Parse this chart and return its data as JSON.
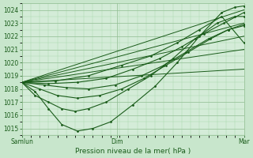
{
  "bg_color": "#c8e6cc",
  "plot_bg_color": "#d4ecd8",
  "grid_major_color": "#8fbc8f",
  "grid_minor_color": "#a8d4a8",
  "line_color": "#1a5c1a",
  "ylim": [
    1014.5,
    1024.5
  ],
  "yticks": [
    1015,
    1016,
    1017,
    1018,
    1019,
    1020,
    1021,
    1022,
    1023,
    1024
  ],
  "xlabel": "Pression niveau de la mer( hPa )",
  "xtick_labels": [
    "Samlun",
    "Dim",
    "Mar"
  ],
  "xtick_positions": [
    0.0,
    0.43,
    1.0
  ],
  "figsize": [
    3.2,
    2.0
  ],
  "dpi": 100,
  "straight_lines": [
    {
      "x": [
        0.0,
        1.0
      ],
      "y": [
        1018.5,
        1019.5
      ]
    },
    {
      "x": [
        0.0,
        1.0
      ],
      "y": [
        1018.5,
        1021.0
      ]
    },
    {
      "x": [
        0.0,
        1.0
      ],
      "y": [
        1018.5,
        1022.0
      ]
    },
    {
      "x": [
        0.0,
        1.0
      ],
      "y": [
        1018.5,
        1023.0
      ]
    },
    {
      "x": [
        0.0,
        1.0
      ],
      "y": [
        1018.5,
        1024.0
      ]
    }
  ],
  "curved_lines": [
    {
      "x": [
        0.0,
        0.06,
        0.12,
        0.18,
        0.25,
        0.32,
        0.4,
        0.5,
        0.6,
        0.7,
        0.8,
        0.9,
        0.96,
        1.0
      ],
      "y": [
        1018.5,
        1017.8,
        1016.5,
        1015.3,
        1014.8,
        1015.0,
        1015.5,
        1016.8,
        1018.2,
        1020.0,
        1022.0,
        1023.8,
        1024.2,
        1024.3
      ]
    },
    {
      "x": [
        0.0,
        0.06,
        0.12,
        0.18,
        0.24,
        0.3,
        0.38,
        0.48,
        0.58,
        0.68,
        0.78,
        0.88,
        0.96,
        1.0
      ],
      "y": [
        1018.5,
        1017.5,
        1017.0,
        1016.5,
        1016.3,
        1016.5,
        1017.0,
        1018.0,
        1019.0,
        1020.3,
        1021.8,
        1023.0,
        1023.5,
        1023.5
      ]
    },
    {
      "x": [
        0.0,
        0.08,
        0.16,
        0.25,
        0.35,
        0.45,
        0.55,
        0.65,
        0.75,
        0.85,
        0.93,
        1.0
      ],
      "y": [
        1018.5,
        1018.0,
        1017.5,
        1017.3,
        1017.5,
        1018.0,
        1018.8,
        1019.8,
        1020.8,
        1021.8,
        1022.5,
        1022.8
      ]
    },
    {
      "x": [
        0.0,
        0.1,
        0.2,
        0.3,
        0.42,
        0.54,
        0.64,
        0.74,
        0.84,
        0.93,
        1.0
      ],
      "y": [
        1018.5,
        1018.3,
        1018.1,
        1018.0,
        1018.3,
        1019.0,
        1019.8,
        1020.8,
        1021.8,
        1022.5,
        1022.9
      ]
    },
    {
      "x": [
        0.0,
        0.12,
        0.25,
        0.38,
        0.5,
        0.62,
        0.72,
        0.82,
        0.91,
        1.0
      ],
      "y": [
        1018.5,
        1018.4,
        1018.5,
        1018.8,
        1019.5,
        1020.3,
        1021.2,
        1022.2,
        1023.0,
        1023.8
      ]
    },
    {
      "x": [
        0.0,
        0.15,
        0.3,
        0.45,
        0.58,
        0.7,
        0.8,
        0.9,
        1.0
      ],
      "y": [
        1018.5,
        1018.6,
        1019.0,
        1019.8,
        1020.5,
        1021.5,
        1022.5,
        1023.5,
        1021.5
      ]
    }
  ]
}
